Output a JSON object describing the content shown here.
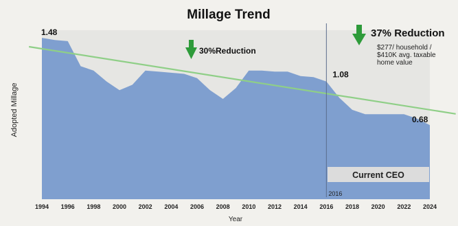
{
  "chart_data": {
    "type": "area",
    "title": "Millage Trend",
    "xlabel": "Year",
    "ylabel": "Adopted Millage",
    "x_ticks": [
      "1994",
      "1996",
      "1998",
      "2000",
      "2002",
      "2004",
      "2006",
      "2008",
      "2010",
      "2012",
      "2014",
      "2016",
      "2018",
      "2020",
      "2022",
      "2024"
    ],
    "xlim": [
      1994,
      2024
    ],
    "ylim": [
      0,
      1.55
    ],
    "grid": false,
    "x": [
      1994,
      1995,
      1996,
      1997,
      1998,
      1999,
      2000,
      2001,
      2002,
      2003,
      2004,
      2005,
      2006,
      2007,
      2008,
      2009,
      2010,
      2011,
      2012,
      2013,
      2014,
      2015,
      2016,
      2017,
      2018,
      2019,
      2020,
      2021,
      2022,
      2023,
      2024
    ],
    "values": [
      1.48,
      1.46,
      1.45,
      1.22,
      1.18,
      1.08,
      1.0,
      1.05,
      1.18,
      1.17,
      1.16,
      1.15,
      1.11,
      1.0,
      0.92,
      1.02,
      1.18,
      1.18,
      1.17,
      1.17,
      1.13,
      1.12,
      1.08,
      0.93,
      0.82,
      0.78,
      0.78,
      0.78,
      0.78,
      0.74,
      0.68
    ],
    "trendline": {
      "x": [
        1994,
        2024
      ],
      "y": [
        1.38,
        0.82
      ],
      "color": "#8fcf87"
    },
    "marker_year": 2016,
    "data_labels": [
      {
        "x": 1994,
        "y": 1.48,
        "text": "1.48"
      },
      {
        "x": 2016,
        "y": 1.08,
        "text": "1.08"
      },
      {
        "x": 2024,
        "y": 0.68,
        "text": "0.68"
      }
    ],
    "annotations": {
      "reduction_1": "30%Reduction",
      "reduction_2": "37% Reduction",
      "detail_line_1": "$277/ household /",
      "detail_line_2": "$410K avg. taxable",
      "detail_line_3": "home value",
      "ceo_label": "Current CEO",
      "marker_label": "2016"
    },
    "colors": {
      "area": "#7f9fcf",
      "plot_bg": "#e6e6e3",
      "arrow": "#2e9b3a",
      "ceo_box": "#dcdcdc",
      "page_bg": "#f2f1ed"
    }
  }
}
